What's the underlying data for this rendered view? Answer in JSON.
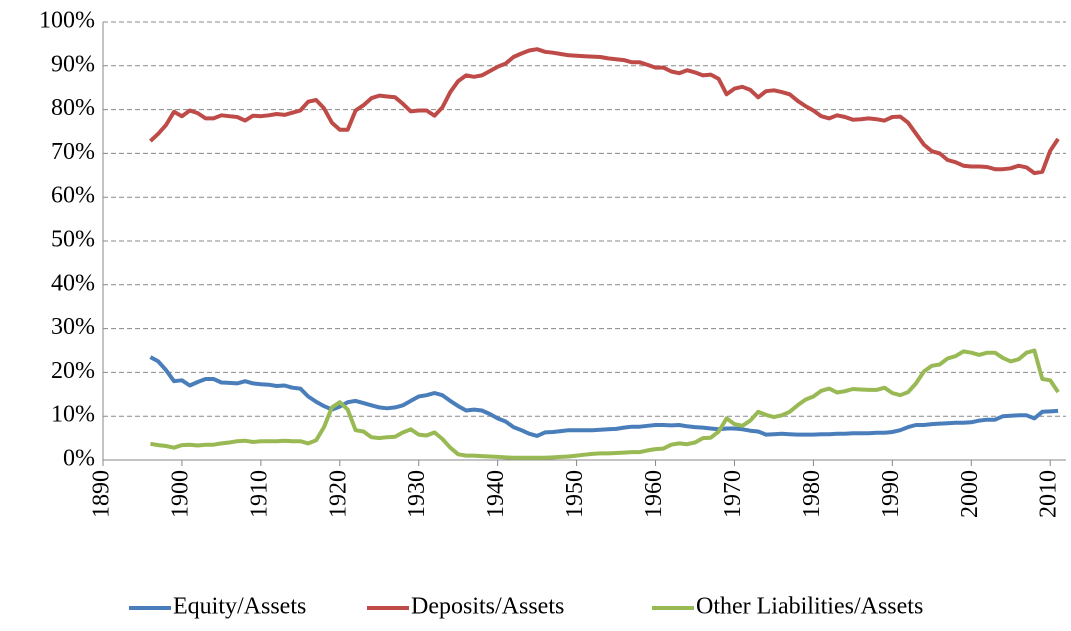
{
  "chart_data": {
    "type": "line",
    "x": [
      1896,
      1897,
      1898,
      1899,
      1900,
      1901,
      1902,
      1903,
      1904,
      1905,
      1906,
      1907,
      1908,
      1909,
      1910,
      1911,
      1912,
      1913,
      1914,
      1915,
      1916,
      1917,
      1918,
      1919,
      1920,
      1921,
      1922,
      1923,
      1924,
      1925,
      1926,
      1927,
      1928,
      1929,
      1930,
      1931,
      1932,
      1933,
      1934,
      1935,
      1936,
      1937,
      1938,
      1939,
      1940,
      1941,
      1942,
      1943,
      1944,
      1945,
      1946,
      1947,
      1948,
      1949,
      1950,
      1951,
      1952,
      1953,
      1954,
      1955,
      1956,
      1957,
      1958,
      1959,
      1960,
      1961,
      1962,
      1963,
      1964,
      1965,
      1966,
      1967,
      1968,
      1969,
      1970,
      1971,
      1972,
      1973,
      1974,
      1975,
      1976,
      1977,
      1978,
      1979,
      1980,
      1981,
      1982,
      1983,
      1984,
      1985,
      1986,
      1987,
      1988,
      1989,
      1990,
      1991,
      1992,
      1993,
      1994,
      1995,
      1996,
      1997,
      1998,
      1999,
      2000,
      2001,
      2002,
      2003,
      2004,
      2005,
      2006,
      2007,
      2008,
      2009,
      2010,
      2011
    ],
    "series": [
      {
        "name": "Equity/Assets",
        "color": "#4a7ebb",
        "values": [
          23.5,
          22.5,
          20.5,
          18,
          18.2,
          17,
          17.8,
          18.5,
          18.5,
          17.7,
          17.6,
          17.5,
          18,
          17.5,
          17.3,
          17.2,
          16.9,
          17,
          16.5,
          16.3,
          14.5,
          13.3,
          12.3,
          11.5,
          12.2,
          13.2,
          13.5,
          13,
          12.5,
          12,
          11.8,
          12,
          12.5,
          13.5,
          14.5,
          14.8,
          15.3,
          14.8,
          13.5,
          12.3,
          11.3,
          11.5,
          11.3,
          10.5,
          9.5,
          8.8,
          7.5,
          6.8,
          6,
          5.5,
          6.3,
          6.4,
          6.6,
          6.8,
          6.8,
          6.8,
          6.8,
          6.9,
          7,
          7.1,
          7.4,
          7.6,
          7.6,
          7.8,
          8,
          8,
          7.9,
          8,
          7.7,
          7.5,
          7.4,
          7.2,
          7,
          7.2,
          7.2,
          7,
          6.7,
          6.5,
          5.8,
          5.9,
          6,
          5.9,
          5.8,
          5.8,
          5.8,
          5.9,
          5.9,
          6,
          6,
          6.1,
          6.1,
          6.1,
          6.2,
          6.2,
          6.4,
          6.8,
          7.5,
          8,
          8,
          8.2,
          8.3,
          8.4,
          8.5,
          8.5,
          8.6,
          9,
          9.2,
          9.2,
          10,
          10.1,
          10.2,
          10.2,
          9.5,
          11,
          11.1,
          11.2
        ]
      },
      {
        "name": "Deposits/Assets",
        "color": "#be4b48",
        "values": [
          72.8,
          74.5,
          76.5,
          79.5,
          78.5,
          79.8,
          79.2,
          78,
          78,
          78.7,
          78.5,
          78.3,
          77.5,
          78.6,
          78.5,
          78.7,
          79,
          78.8,
          79.3,
          79.8,
          81.8,
          82.2,
          80.3,
          77,
          75.4,
          75.4,
          79.8,
          81,
          82.6,
          83.2,
          83,
          82.8,
          81.3,
          79.6,
          79.8,
          79.8,
          78.6,
          80.5,
          84,
          86.5,
          87.8,
          87.5,
          87.8,
          88.8,
          89.8,
          90.5,
          92,
          92.8,
          93.5,
          93.8,
          93.2,
          93,
          92.7,
          92.4,
          92.3,
          92.2,
          92.1,
          92,
          91.7,
          91.5,
          91.3,
          90.8,
          90.8,
          90.2,
          89.6,
          89.6,
          88.7,
          88.3,
          89,
          88.5,
          87.8,
          88,
          87,
          83.5,
          84.8,
          85.2,
          84.5,
          82.8,
          84.2,
          84.4,
          84,
          83.5,
          82,
          80.8,
          79.8,
          78.5,
          78,
          78.7,
          78.3,
          77.7,
          77.8,
          78,
          77.8,
          77.5,
          78.3,
          78.4,
          77,
          74.5,
          72,
          70.5,
          70,
          68.5,
          68,
          67.2,
          67,
          67,
          66.9,
          66.4,
          66.4,
          66.6,
          67.2,
          66.8,
          65.5,
          65.8,
          70.6,
          73.3
        ]
      },
      {
        "name": "Other Liabilities/Assets",
        "color": "#98b954",
        "values": [
          3.7,
          3.4,
          3.2,
          2.8,
          3.4,
          3.5,
          3.3,
          3.5,
          3.5,
          3.8,
          4,
          4.3,
          4.4,
          4.1,
          4.3,
          4.3,
          4.3,
          4.4,
          4.3,
          4.3,
          3.8,
          4.5,
          7.5,
          12,
          13.2,
          11.5,
          6.8,
          6.5,
          5.2,
          5,
          5.2,
          5.3,
          6.3,
          7,
          5.8,
          5.6,
          6.3,
          4.8,
          2.8,
          1.3,
          1,
          1,
          0.9,
          0.8,
          0.7,
          0.6,
          0.5,
          0.5,
          0.5,
          0.5,
          0.5,
          0.6,
          0.7,
          0.8,
          1,
          1.2,
          1.4,
          1.5,
          1.5,
          1.6,
          1.7,
          1.8,
          1.8,
          2.2,
          2.5,
          2.6,
          3.5,
          3.8,
          3.6,
          4,
          5,
          5.1,
          6.5,
          9.5,
          8.2,
          7.8,
          9,
          11,
          10.3,
          9.8,
          10.2,
          11,
          12.5,
          13.8,
          14.5,
          15.8,
          16.3,
          15.4,
          15.7,
          16.2,
          16.1,
          16,
          16,
          16.5,
          15.3,
          14.8,
          15.5,
          17.5,
          20.2,
          21.5,
          21.8,
          23.2,
          23.7,
          24.8,
          24.5,
          24,
          24.5,
          24.5,
          23.3,
          22.5,
          23,
          24.5,
          25,
          18.5,
          18.2,
          15.5
        ]
      }
    ],
    "xlim": [
      1890,
      2012
    ],
    "xticks": [
      1890,
      1900,
      1910,
      1920,
      1930,
      1940,
      1950,
      1960,
      1970,
      1980,
      1990,
      2000,
      2010
    ],
    "ylim": [
      0,
      100
    ],
    "yticks": [
      {
        "value": 0,
        "label": "0%"
      },
      {
        "value": 10,
        "label": "10%"
      },
      {
        "value": 20,
        "label": "20%"
      },
      {
        "value": 30,
        "label": "30%"
      },
      {
        "value": 40,
        "label": "40%"
      },
      {
        "value": 50,
        "label": "50%"
      },
      {
        "value": 60,
        "label": "60%"
      },
      {
        "value": 70,
        "label": "70%"
      },
      {
        "value": 80,
        "label": "80%"
      },
      {
        "value": 90,
        "label": "90%"
      },
      {
        "value": 100,
        "label": "100%"
      }
    ],
    "grid": true,
    "legend": "bottom"
  }
}
